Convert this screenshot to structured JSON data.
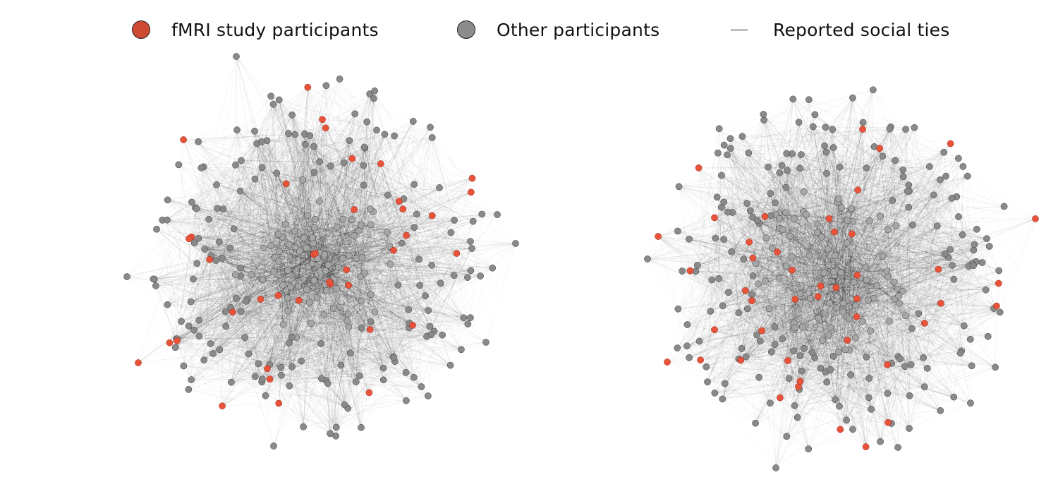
{
  "legend": {
    "items": [
      {
        "label": "fMRI study participants",
        "marker": "circle",
        "color": "#cf4a33"
      },
      {
        "label": "Other participants",
        "marker": "circle",
        "color": "#8c8c8c"
      },
      {
        "label": "Reported social ties",
        "marker": "line",
        "color": "#222222"
      }
    ]
  },
  "colors": {
    "fmri_node": "#e8533a",
    "fmri_node_stroke": "#9a2a1a",
    "other_node_outer": "#8a8a8a",
    "other_node_inner": "#a6a6a6",
    "node_stroke": "#3a3a3a",
    "edge": "#000000",
    "background": "#ffffff"
  },
  "networks": [
    {
      "name": "",
      "fmri_participants_visible": 39
    },
    {
      "name": "",
      "fmri_participants_visible": 45
    }
  ]
}
